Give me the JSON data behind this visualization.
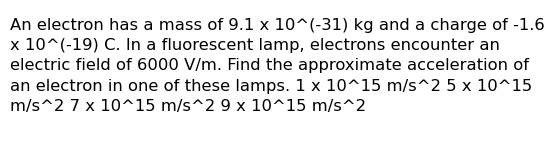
{
  "text": "An electron has a mass of 9.1 x 10^(-31) kg and a charge of -1.6\nx 10^(-19) C. In a fluorescent lamp, electrons encounter an\nelectric field of 6000 V/m. Find the approximate acceleration of\nan electron in one of these lamps. 1 x 10^15 m/s^2 5 x 10^15\nm/s^2 7 x 10^15 m/s^2 9 x 10^15 m/s^2",
  "background_color": "#ffffff",
  "text_color": "#000000",
  "font_size": 11.8,
  "font_family": "DejaVu Sans"
}
